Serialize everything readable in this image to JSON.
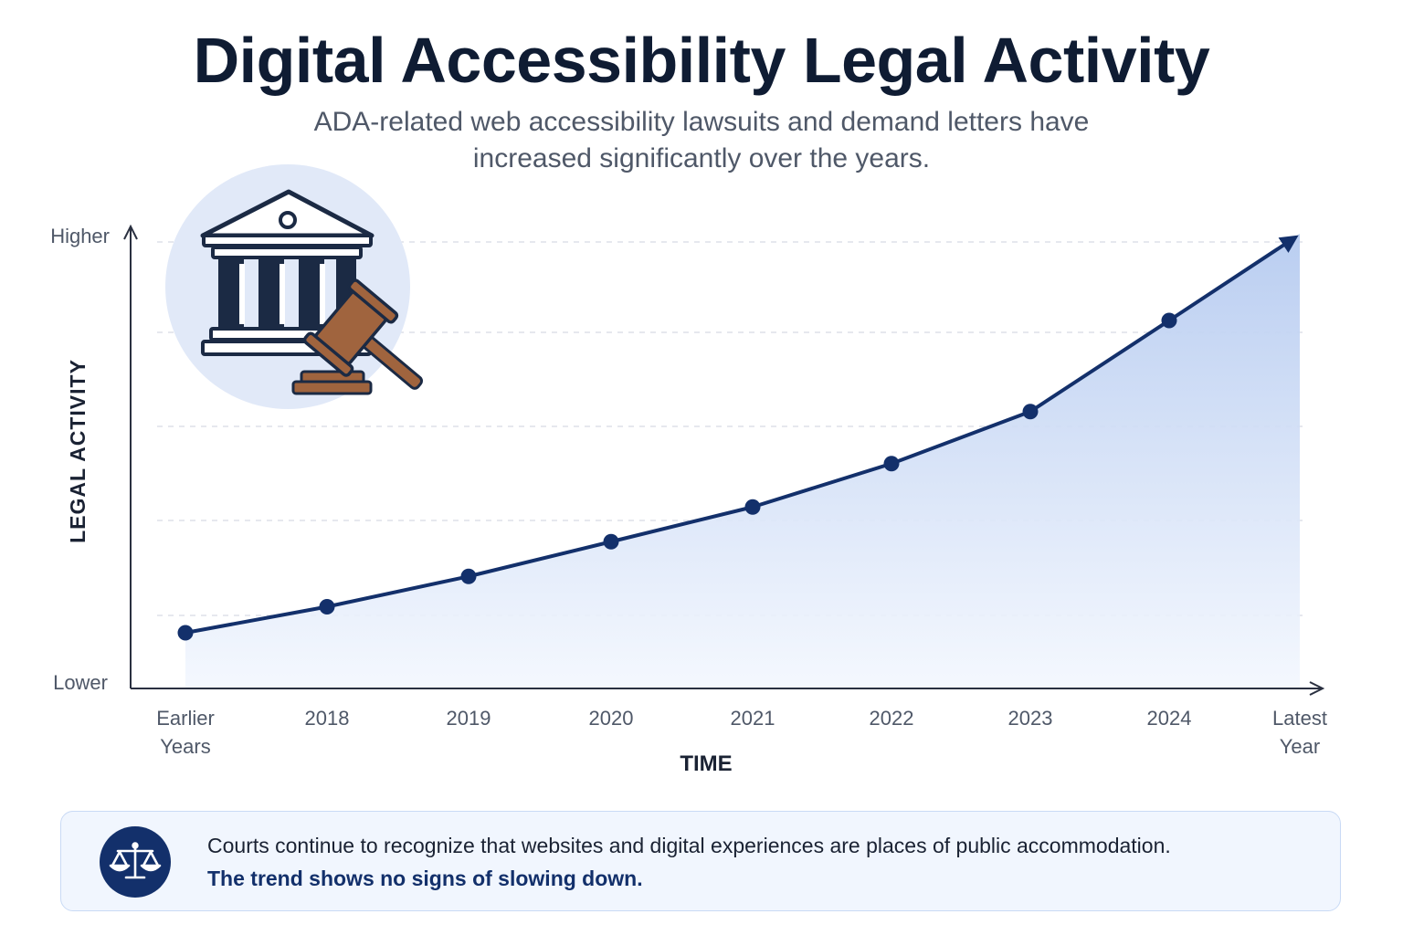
{
  "chart_data": {
    "type": "area",
    "title": "Digital Accessibility Legal Activity",
    "subtitle_lines": [
      "ADA-related web accessibility lawsuits and demand letters have",
      "increased significantly over the years."
    ],
    "xlabel": "TIME",
    "ylabel": "LEGAL ACTIVITY",
    "y_tick_labels": {
      "top": "Higher",
      "bottom": "Lower"
    },
    "ylim": [
      0,
      100
    ],
    "categories": [
      "Earlier Years",
      "2018",
      "2019",
      "2020",
      "2021",
      "2022",
      "2023",
      "2024",
      "Latest Year"
    ],
    "category_lines": [
      [
        "Earlier",
        "Years"
      ],
      [
        "2018"
      ],
      [
        "2019"
      ],
      [
        "2020"
      ],
      [
        "2021"
      ],
      [
        "2022"
      ],
      [
        "2023"
      ],
      [
        "2024"
      ],
      [
        "Latest",
        "Year"
      ]
    ],
    "values": [
      12,
      18,
      25,
      33,
      41,
      51,
      63,
      84,
      104
    ],
    "marked_points": [
      true,
      true,
      true,
      true,
      true,
      true,
      true,
      true,
      false
    ],
    "trend_arrow": true,
    "grid": "horizontal-dashed",
    "colors": {
      "line": "#13306b",
      "area_top": "#b6cbf0",
      "area_bottom": "#f3f7fe",
      "axis": "#2a3040",
      "grid": "#d6dbe3"
    }
  },
  "illustration": {
    "icon": "courthouse-gavel-icon",
    "colors": {
      "circle": "#e1e9f8",
      "building": "#1b2a44",
      "gavel": "#a0643e"
    }
  },
  "callout": {
    "icon": "scales-of-justice-icon",
    "line_1": "Courts continue to recognize that websites and digital experiences are places of public accommodation.",
    "line_2": "The trend shows no signs of slowing down.",
    "colors": {
      "badge": "#13306b",
      "background": "#f1f6fe",
      "border": "#c9daf5"
    }
  }
}
